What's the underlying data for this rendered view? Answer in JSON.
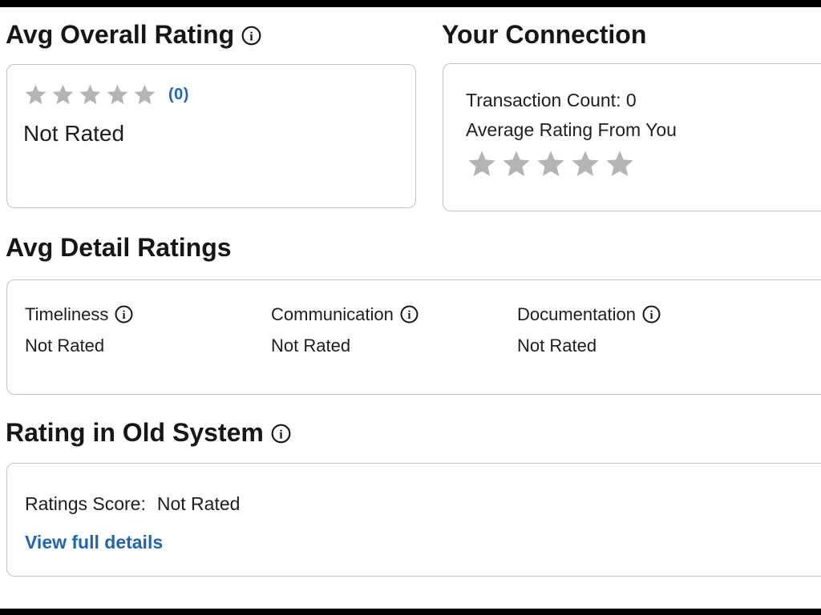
{
  "colors": {
    "link_blue": "#2065b0",
    "star_gray": "#b4b4b6",
    "card_border": "#c3c3c3",
    "text": "#1d1d1d",
    "letterbox": "#000000"
  },
  "icons": {
    "info": "circled-serif-i",
    "star": "five-point-star-filled"
  },
  "sections": {
    "avg_overall": {
      "title": "Avg Overall Rating",
      "star_count": 5,
      "stars_filled": 0,
      "review_count": "(0)",
      "status": "Not Rated"
    },
    "your_connection": {
      "title": "Your Connection",
      "transaction_count_label": "Transaction Count:",
      "transaction_count_value": "0",
      "avg_rating_label": "Average Rating From You",
      "star_count": 5,
      "stars_filled": 0
    },
    "avg_detail": {
      "title": "Avg Detail Ratings",
      "items": [
        {
          "label": "Timeliness",
          "value": "Not Rated"
        },
        {
          "label": "Communication",
          "value": "Not Rated"
        },
        {
          "label": "Documentation",
          "value": "Not Rated"
        }
      ]
    },
    "old_system": {
      "title": "Rating in Old System",
      "score_label": "Ratings Score:",
      "score_value": "Not Rated",
      "link_label": "View full details"
    }
  }
}
